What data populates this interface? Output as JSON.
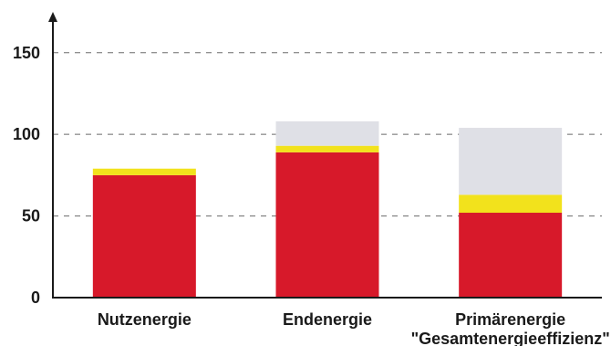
{
  "chart_data": {
    "type": "bar",
    "stacked": true,
    "categories": [
      [
        "Nutzenergie"
      ],
      [
        "Endenergie"
      ],
      [
        "Primärenergie",
        "\"Gesamtenergieeffizienz\""
      ]
    ],
    "series": [
      {
        "color": "#d7192a",
        "values": [
          75,
          89,
          52
        ]
      },
      {
        "color": "#f2e21c",
        "values": [
          4,
          4,
          11
        ]
      },
      {
        "color": "#dfe0e6",
        "values": [
          0,
          15,
          41
        ]
      }
    ],
    "yticks": [
      0,
      50,
      100,
      150
    ],
    "ylim": [
      0,
      170
    ],
    "grid": "dashed horizontal",
    "xlabel": "",
    "ylabel": ""
  }
}
